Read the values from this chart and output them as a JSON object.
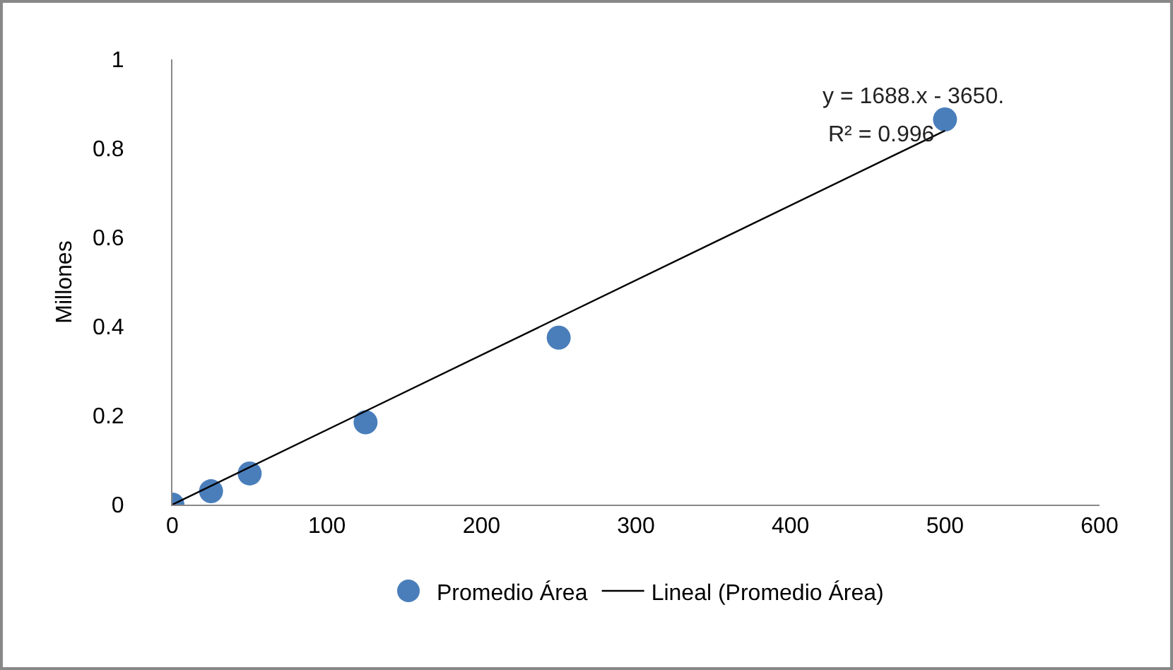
{
  "chart_data": {
    "type": "scatter",
    "ylabel": "Millones",
    "annotations": [
      "y = 1688.x - 3650.",
      "R² = 0.996"
    ],
    "series": [
      {
        "name": "Promedio Área",
        "type": "scatter",
        "color": "#4a7ebb",
        "marker": "circle",
        "x": [
          0,
          25,
          50,
          125,
          250,
          500
        ],
        "values": [
          0,
          0.03,
          0.07,
          0.185,
          0.375,
          0.865
        ]
      },
      {
        "name": "Lineal (Promedio Área)",
        "type": "line",
        "color": "#000000",
        "marker": "none",
        "line_style": "solid",
        "x": [
          0,
          500
        ],
        "values": [
          0,
          0.84
        ]
      }
    ],
    "xlim": [
      0,
      600
    ],
    "xticks": [
      0,
      100,
      200,
      300,
      400,
      500,
      600
    ],
    "ylim": [
      0,
      1
    ],
    "yticks": [
      0,
      0.2,
      0.4,
      0.6,
      0.8,
      1
    ],
    "grid": false,
    "legend": "bottom"
  }
}
